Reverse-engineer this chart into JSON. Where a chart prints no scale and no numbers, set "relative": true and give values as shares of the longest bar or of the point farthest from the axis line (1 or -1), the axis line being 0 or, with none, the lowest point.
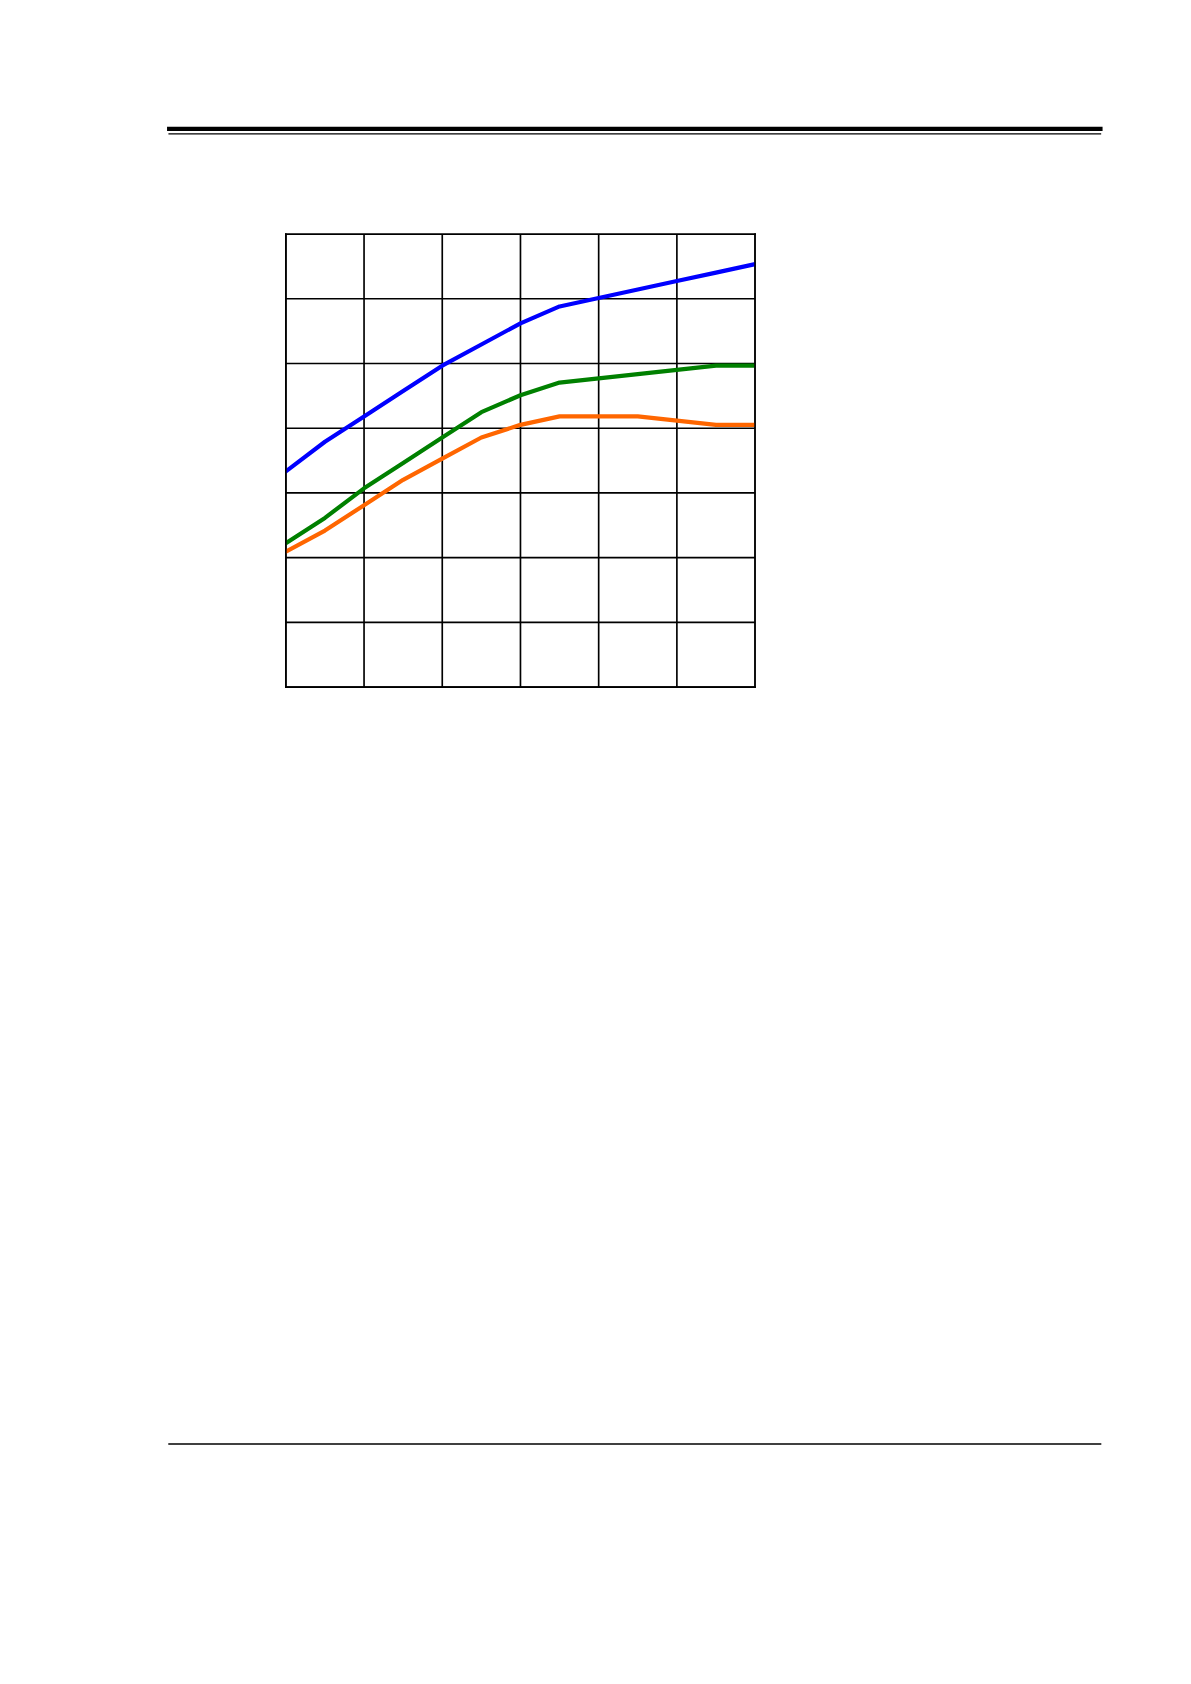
{
  "chart_data": {
    "type": "line",
    "relative": true,
    "grid": true,
    "tick_labels": false,
    "categories": [
      null,
      null,
      null,
      null,
      null,
      null,
      null,
      null,
      null,
      null,
      null,
      null,
      null
    ],
    "series": [
      {
        "color": "#0000ff",
        "values": [
          0.51,
          0.58,
          0.64,
          0.7,
          0.76,
          0.81,
          0.86,
          0.9,
          0.92,
          0.94,
          0.96,
          0.98,
          1.0
        ]
      },
      {
        "color": "#008000",
        "values": [
          0.34,
          0.4,
          0.47,
          0.53,
          0.59,
          0.65,
          0.69,
          0.72,
          0.73,
          0.74,
          0.75,
          0.76,
          0.76
        ]
      },
      {
        "color": "#ff6600",
        "values": [
          0.32,
          0.37,
          0.43,
          0.49,
          0.54,
          0.59,
          0.62,
          0.64,
          0.64,
          0.64,
          0.63,
          0.62,
          0.62
        ]
      }
    ]
  }
}
